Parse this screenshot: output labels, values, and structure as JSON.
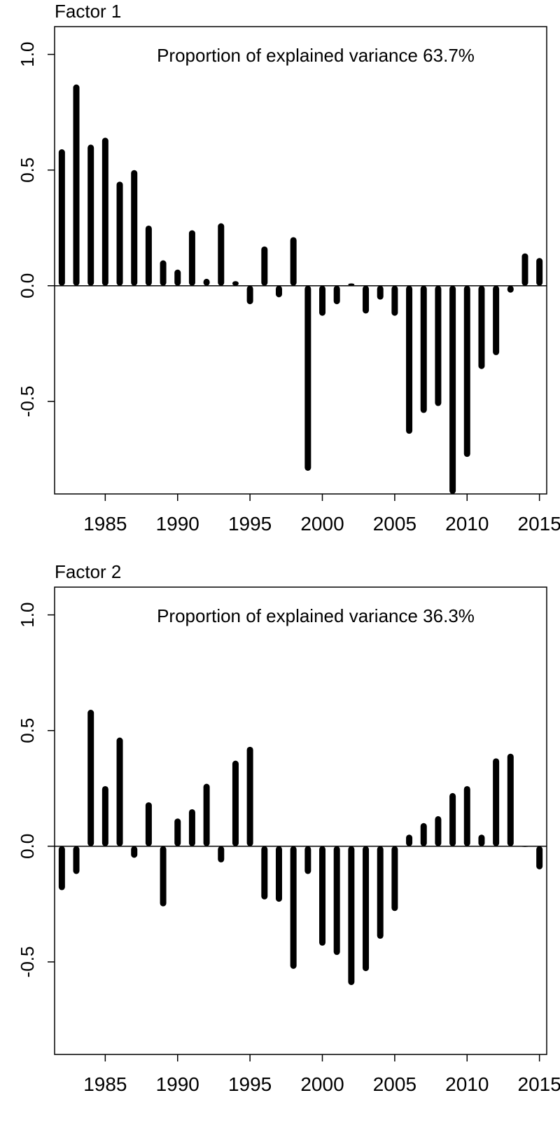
{
  "chart_data": [
    {
      "type": "bar",
      "title": "Factor 1",
      "annotation": "Proportion of explained variance 63.7%",
      "xlabel": "",
      "ylabel": "",
      "xlim": [
        1981.5,
        2015.5
      ],
      "ylim": [
        -0.9,
        1.12
      ],
      "yticks": [
        1.0,
        0.5,
        0.0,
        -0.5
      ],
      "ytick_labels": [
        "1.0",
        "0.5",
        "0.0",
        "-0.5"
      ],
      "xticks": [
        1985,
        1990,
        1995,
        2000,
        2005,
        2010,
        2015
      ],
      "xtick_labels": [
        "1985",
        "1990",
        "1995",
        "2000",
        "2005",
        "2010",
        "2015"
      ],
      "zero_line": true,
      "grid": false,
      "color": "#000000",
      "x": [
        1982,
        1983,
        1984,
        1985,
        1986,
        1987,
        1988,
        1989,
        1990,
        1991,
        1992,
        1993,
        1994,
        1995,
        1996,
        1997,
        1998,
        1999,
        2000,
        2001,
        2002,
        2003,
        2004,
        2005,
        2006,
        2007,
        2008,
        2009,
        2010,
        2011,
        2012,
        2013,
        2014,
        2015
      ],
      "values": [
        0.59,
        0.87,
        0.61,
        0.64,
        0.45,
        0.5,
        0.26,
        0.11,
        0.07,
        0.24,
        0.03,
        0.27,
        0.02,
        -0.08,
        0.17,
        -0.05,
        0.21,
        -0.8,
        -0.13,
        -0.08,
        0.01,
        -0.12,
        -0.06,
        -0.13,
        -0.64,
        -0.55,
        -0.52,
        -0.9,
        -0.74,
        -0.36,
        -0.3,
        -0.03,
        0.14,
        0.12
      ]
    },
    {
      "type": "bar",
      "title": "Factor 2",
      "annotation": "Proportion of explained variance 36.3%",
      "xlabel": "",
      "ylabel": "",
      "xlim": [
        1981.5,
        2015.5
      ],
      "ylim": [
        -0.9,
        1.12
      ],
      "yticks": [
        1.0,
        0.5,
        0.0,
        -0.5
      ],
      "ytick_labels": [
        "1.0",
        "0.5",
        "0.0",
        "-0.5"
      ],
      "xticks": [
        1985,
        1990,
        1995,
        2000,
        2005,
        2010,
        2015
      ],
      "xtick_labels": [
        "1985",
        "1990",
        "1995",
        "2000",
        "2005",
        "2010",
        "2015"
      ],
      "zero_line": true,
      "grid": false,
      "color": "#000000",
      "x": [
        1982,
        1983,
        1984,
        1985,
        1986,
        1987,
        1988,
        1989,
        1990,
        1991,
        1992,
        1993,
        1994,
        1995,
        1996,
        1997,
        1998,
        1999,
        2000,
        2001,
        2002,
        2003,
        2004,
        2005,
        2006,
        2007,
        2008,
        2009,
        2010,
        2011,
        2012,
        2013,
        2014,
        2015
      ],
      "values": [
        -0.19,
        -0.12,
        0.59,
        0.26,
        0.47,
        -0.05,
        0.19,
        -0.26,
        0.12,
        0.16,
        0.27,
        -0.07,
        0.37,
        0.43,
        -0.23,
        -0.24,
        -0.53,
        -0.12,
        -0.43,
        -0.47,
        -0.6,
        -0.54,
        -0.4,
        -0.28,
        0.05,
        0.1,
        0.13,
        0.23,
        0.26,
        0.05,
        0.38,
        0.4,
        0.0,
        -0.1
      ]
    }
  ]
}
